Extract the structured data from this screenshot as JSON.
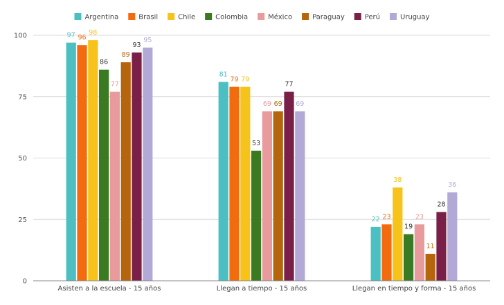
{
  "chart_data": {
    "type": "bar",
    "title": "",
    "xlabel": "",
    "ylabel": "",
    "ylim": [
      0,
      100
    ],
    "yticks": [
      0,
      25,
      50,
      75,
      100
    ],
    "grid": true,
    "legend_position": "top",
    "categories": [
      "Asisten a la escuela - 15 años",
      "Llegan a tiempo - 15 años",
      "Llegan en tiempo y forma - 15 años"
    ],
    "series": [
      {
        "name": "Argentina",
        "color": "#4bbfc1",
        "values": [
          97,
          81,
          22
        ]
      },
      {
        "name": "Brasil",
        "color": "#f26b0f",
        "values": [
          96,
          79,
          23
        ]
      },
      {
        "name": "Chile",
        "color": "#f7c21a",
        "values": [
          98,
          79,
          38
        ]
      },
      {
        "name": "Colombia",
        "color": "#3a7a22",
        "values": [
          86,
          53,
          19
        ]
      },
      {
        "name": "México",
        "color": "#e99a9c",
        "values": [
          77,
          69,
          23
        ]
      },
      {
        "name": "Paraguay",
        "color": "#b5650c",
        "values": [
          89,
          69,
          11
        ]
      },
      {
        "name": "Perú",
        "color": "#7a1f48",
        "values": [
          93,
          77,
          28
        ]
      },
      {
        "name": "Uruguay",
        "color": "#b3a9d6",
        "values": [
          95,
          69,
          36
        ]
      }
    ]
  }
}
